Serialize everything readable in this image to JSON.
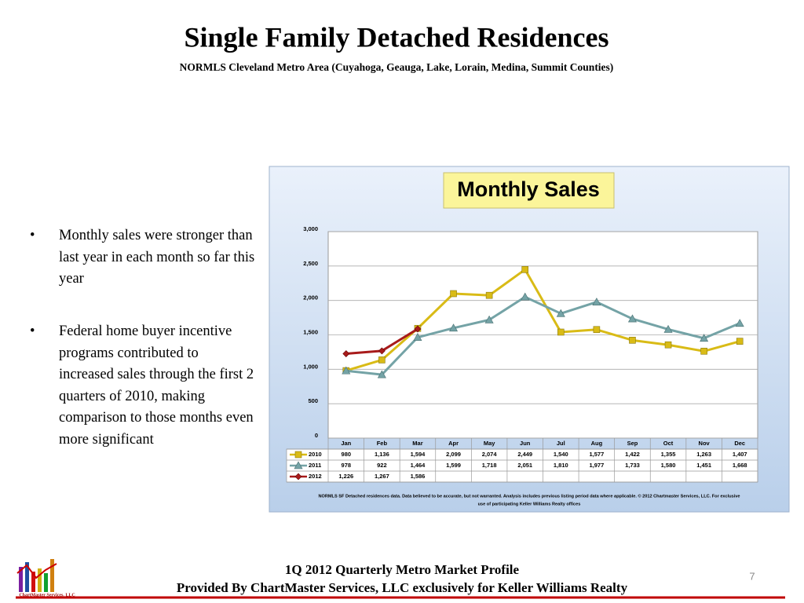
{
  "slide": {
    "title": "Single Family Detached Residences",
    "subtitle": "NORMLS Cleveland Metro Area (Cuyahoga, Geauga, Lake, Lorain, Medina, Summit Counties)",
    "bullets": [
      "Monthly sales were stronger than last year in each month so far this year",
      "Federal home buyer incentive programs contributed to increased sales through the first 2 quarters of 2010, making comparison to those months even more significant"
    ],
    "footer": [
      "1Q 2012 Quarterly Metro Market Profile",
      "Provided By ChartMaster Services, LLC exclusively for Keller Williams Realty"
    ],
    "page_number": "7",
    "logo_text": "ChartMaster Services, LLC"
  },
  "chart_data": {
    "type": "line",
    "title": "Monthly Sales",
    "categories": [
      "Jan",
      "Feb",
      "Mar",
      "Apr",
      "May",
      "Jun",
      "Jul",
      "Aug",
      "Sep",
      "Oct",
      "Nov",
      "Dec"
    ],
    "series": [
      {
        "name": "2010",
        "color": "#d9bb16",
        "marker": "square",
        "values": [
          980,
          1136,
          1594,
          2099,
          2074,
          2449,
          1540,
          1577,
          1422,
          1355,
          1263,
          1407
        ],
        "value_labels": [
          "980",
          "1,136",
          "1,594",
          "2,099",
          "2,074",
          "2,449",
          "1,540",
          "1,577",
          "1,422",
          "1,355",
          "1,263",
          "1,407"
        ]
      },
      {
        "name": "2011",
        "color": "#74a3a6",
        "marker": "triangle",
        "values": [
          978,
          922,
          1464,
          1599,
          1718,
          2051,
          1810,
          1977,
          1733,
          1580,
          1451,
          1668
        ],
        "value_labels": [
          "978",
          "922",
          "1,464",
          "1,599",
          "1,718",
          "2,051",
          "1,810",
          "1,977",
          "1,733",
          "1,580",
          "1,451",
          "1,668"
        ]
      },
      {
        "name": "2012",
        "color": "#a81b1b",
        "marker": "diamond",
        "values": [
          1226,
          1267,
          1586,
          null,
          null,
          null,
          null,
          null,
          null,
          null,
          null,
          null
        ],
        "value_labels": [
          "1,226",
          "1,267",
          "1,586",
          null,
          null,
          null,
          null,
          null,
          null,
          null,
          null,
          null
        ]
      }
    ],
    "ylim": [
      0,
      3000
    ],
    "yticks": [
      0,
      500,
      {
        "value": 1000,
        "label": "1,000"
      },
      {
        "value": 1500,
        "label": "1,500"
      },
      {
        "value": 2000,
        "label": "2,000"
      },
      {
        "value": 2500,
        "label": "2,500"
      },
      {
        "value": 3000,
        "label": "3,000"
      }
    ],
    "grid": true,
    "footnote": [
      "NORMLS SF Detached residences data.  Data believed to be accurate, but not warranted.   Analysis includes previous listing period data where applicable.  © 2012 Chartmaster Services, LLC.  For exclusive",
      "use of participating Keller Williams Realty offices"
    ]
  }
}
